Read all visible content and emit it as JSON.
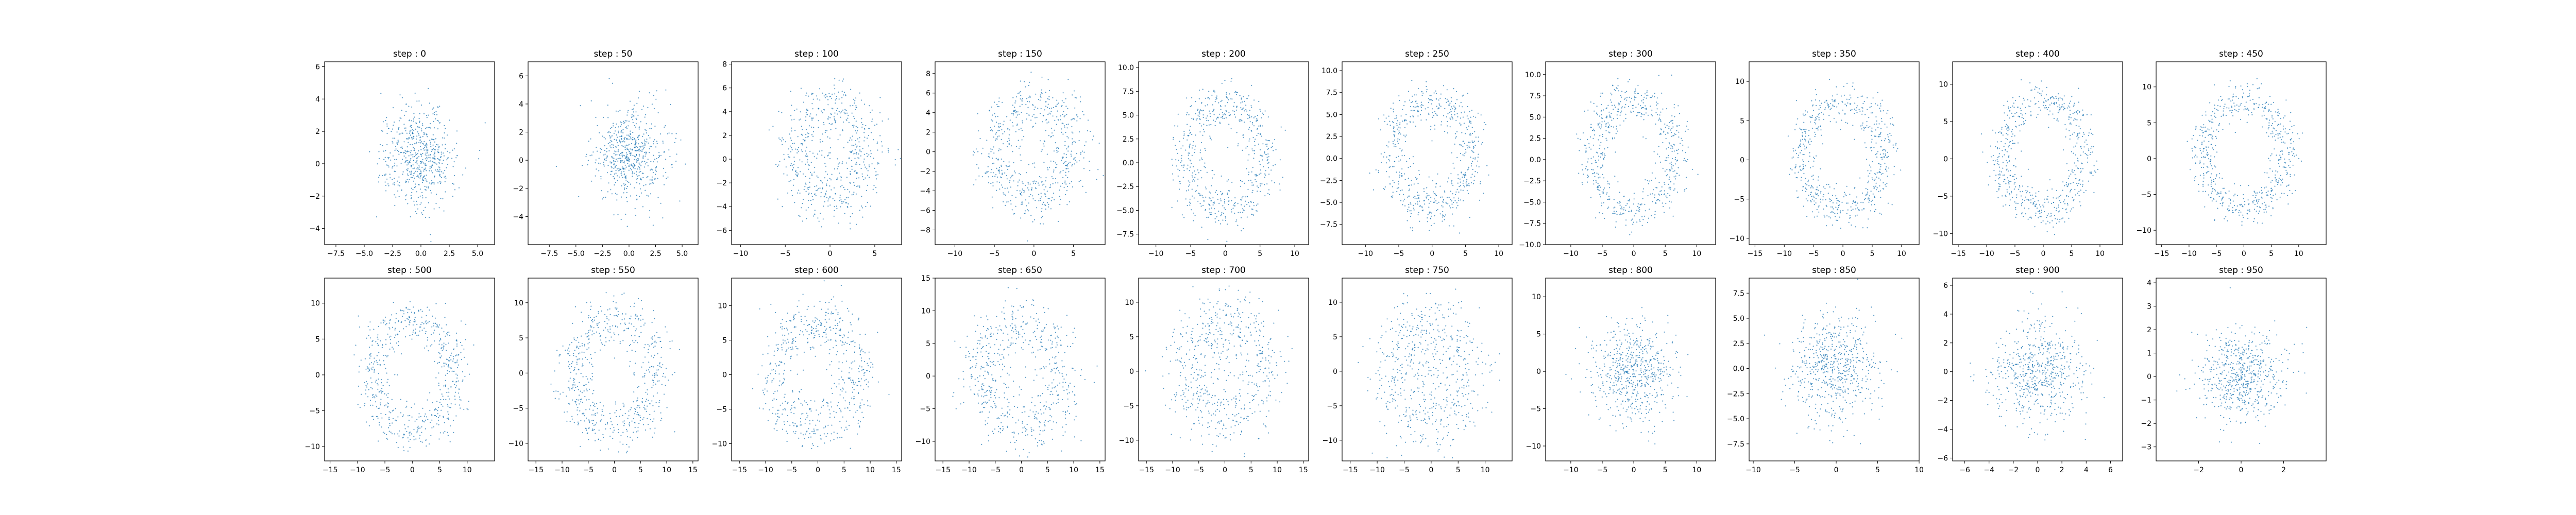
{
  "figure": {
    "background": "#ffffff",
    "point_color": "#1f77b4",
    "axis_color": "#000000"
  },
  "chart_data": [
    {
      "type": "scatter",
      "title": "step : 0",
      "xlim": [
        -8.5,
        6.5
      ],
      "ylim": [
        -5.0,
        6.3
      ],
      "xticks": [
        -7.5,
        -5.0,
        -2.5,
        0.0,
        2.5,
        5.0
      ],
      "yticks": [
        -4,
        -2,
        0,
        2,
        4,
        6
      ],
      "points": [],
      "n_points": 600,
      "gen": {
        "kind": "blob",
        "cx": 0.0,
        "cy": 0.5,
        "r": 3.0,
        "sd": 1.6,
        "seed": 1
      }
    },
    {
      "type": "scatter",
      "title": "step : 50",
      "xlim": [
        -9.5,
        6.5
      ],
      "ylim": [
        -6.0,
        7.0
      ],
      "xticks": [
        -7.5,
        -5.0,
        -2.5,
        0.0,
        2.5,
        5.0
      ],
      "yticks": [
        -4,
        -2,
        0,
        2,
        4,
        6
      ],
      "points": [],
      "n_points": 600,
      "gen": {
        "kind": "blob",
        "cx": 0.0,
        "cy": 0.5,
        "r": 3.3,
        "sd": 1.7,
        "seed": 2
      }
    },
    {
      "type": "scatter",
      "title": "step : 100",
      "xlim": [
        -11,
        8
      ],
      "ylim": [
        -7.2,
        8.2
      ],
      "xticks": [
        -10,
        -5,
        0,
        5
      ],
      "yticks": [
        -6,
        -4,
        -2,
        0,
        2,
        4,
        6,
        8
      ],
      "points": [],
      "n_points": 600,
      "gen": {
        "kind": "ring",
        "cx": 0.0,
        "cy": 0.5,
        "r": 4.0,
        "sd": 1.4,
        "seed": 3
      }
    },
    {
      "type": "scatter",
      "title": "step : 150",
      "xlim": [
        -12.5,
        9
      ],
      "ylim": [
        -9.5,
        9.2
      ],
      "xticks": [
        -10,
        -5,
        0,
        5
      ],
      "yticks": [
        -8,
        -6,
        -4,
        -2,
        0,
        2,
        4,
        6,
        8
      ],
      "points": [],
      "n_points": 600,
      "gen": {
        "kind": "ring",
        "cx": 0.0,
        "cy": 0.0,
        "r": 5.0,
        "sd": 1.4,
        "seed": 4
      }
    },
    {
      "type": "scatter",
      "title": "step : 200",
      "xlim": [
        -12.5,
        12
      ],
      "ylim": [
        -8.6,
        10.6
      ],
      "xticks": [
        -10,
        -5,
        0,
        5,
        10
      ],
      "yticks": [
        -7.5,
        -5.0,
        -2.5,
        0.0,
        2.5,
        5.0,
        7.5,
        10.0
      ],
      "points": [],
      "n_points": 600,
      "gen": {
        "kind": "ring",
        "cx": 0.0,
        "cy": 0.5,
        "r": 5.5,
        "sd": 1.3,
        "seed": 5
      }
    },
    {
      "type": "scatter",
      "title": "step : 250",
      "xlim": [
        -13.5,
        12
      ],
      "ylim": [
        -9.8,
        11.0
      ],
      "xticks": [
        -10,
        -5,
        0,
        5,
        10
      ],
      "yticks": [
        -7.5,
        -5.0,
        -2.5,
        0.0,
        2.5,
        5.0,
        7.5,
        10.0
      ],
      "points": [],
      "n_points": 600,
      "gen": {
        "kind": "ring",
        "cx": 0.0,
        "cy": 0.5,
        "r": 6.0,
        "sd": 1.3,
        "seed": 6
      }
    },
    {
      "type": "scatter",
      "title": "step : 300",
      "xlim": [
        -14,
        13
      ],
      "ylim": [
        -10.0,
        11.5
      ],
      "xticks": [
        -10,
        -5,
        0,
        5,
        10
      ],
      "yticks": [
        -10.0,
        -7.5,
        -5.0,
        -2.5,
        0.0,
        2.5,
        5.0,
        7.5,
        10.0
      ],
      "points": [],
      "n_points": 600,
      "gen": {
        "kind": "ring",
        "cx": 0.0,
        "cy": 0.5,
        "r": 6.5,
        "sd": 1.3,
        "seed": 7
      }
    },
    {
      "type": "scatter",
      "title": "step : 350",
      "xlim": [
        -16,
        13
      ],
      "ylim": [
        -10.8,
        12.5
      ],
      "xticks": [
        -15,
        -10,
        -5,
        0,
        5,
        10
      ],
      "yticks": [
        -10,
        -5,
        0,
        5,
        10
      ],
      "points": [],
      "n_points": 600,
      "gen": {
        "kind": "ring",
        "cx": 0.0,
        "cy": 0.5,
        "r": 7.0,
        "sd": 1.3,
        "seed": 8
      }
    },
    {
      "type": "scatter",
      "title": "step : 400",
      "xlim": [
        -16,
        14
      ],
      "ylim": [
        -11.5,
        13.0
      ],
      "xticks": [
        -15,
        -10,
        -5,
        0,
        5,
        10
      ],
      "yticks": [
        -10,
        -5,
        0,
        5,
        10
      ],
      "points": [],
      "n_points": 600,
      "gen": {
        "kind": "ring",
        "cx": 0.0,
        "cy": 0.5,
        "r": 7.3,
        "sd": 1.3,
        "seed": 9
      }
    },
    {
      "type": "scatter",
      "title": "step : 450",
      "xlim": [
        -16,
        15
      ],
      "ylim": [
        -12,
        13.5
      ],
      "xticks": [
        -15,
        -10,
        -5,
        0,
        5,
        10
      ],
      "yticks": [
        -10,
        -5,
        0,
        5,
        10
      ],
      "points": [],
      "n_points": 600,
      "gen": {
        "kind": "ring",
        "cx": 0.0,
        "cy": 0.5,
        "r": 7.6,
        "sd": 1.3,
        "seed": 10
      }
    },
    {
      "type": "scatter",
      "title": "step : 500",
      "xlim": [
        -16,
        15
      ],
      "ylim": [
        -12,
        13.5
      ],
      "xticks": [
        -15,
        -10,
        -5,
        0,
        5,
        10
      ],
      "yticks": [
        -10,
        -5,
        0,
        5,
        10
      ],
      "points": [],
      "n_points": 600,
      "gen": {
        "kind": "ring",
        "cx": 0.0,
        "cy": 0.0,
        "r": 7.8,
        "sd": 1.6,
        "seed": 11
      }
    },
    {
      "type": "scatter",
      "title": "step : 550",
      "xlim": [
        -16.5,
        16
      ],
      "ylim": [
        -12.5,
        13.5
      ],
      "xticks": [
        -15,
        -10,
        -5,
        0,
        5,
        10,
        15
      ],
      "yticks": [
        -10,
        -5,
        0,
        5,
        10
      ],
      "points": [],
      "n_points": 600,
      "gen": {
        "kind": "ring",
        "cx": 0.0,
        "cy": 0.0,
        "r": 8.0,
        "sd": 1.8,
        "seed": 12
      }
    },
    {
      "type": "scatter",
      "title": "step : 600",
      "xlim": [
        -16.5,
        16
      ],
      "ylim": [
        -12.5,
        14.0
      ],
      "xticks": [
        -15,
        -10,
        -5,
        0,
        5,
        10,
        15
      ],
      "yticks": [
        -10,
        -5,
        0,
        5,
        10
      ],
      "points": [],
      "n_points": 600,
      "gen": {
        "kind": "ring",
        "cx": 0.0,
        "cy": 0.0,
        "r": 8.0,
        "sd": 2.1,
        "seed": 13
      }
    },
    {
      "type": "scatter",
      "title": "step : 650",
      "xlim": [
        -16.5,
        16
      ],
      "ylim": [
        -13,
        15
      ],
      "xticks": [
        -15,
        -10,
        -5,
        0,
        5,
        10,
        15
      ],
      "yticks": [
        -10,
        -5,
        0,
        5,
        10,
        15
      ],
      "points": [],
      "n_points": 600,
      "gen": {
        "kind": "ring",
        "cx": 0.0,
        "cy": 0.0,
        "r": 8.0,
        "sd": 2.4,
        "seed": 14
      }
    },
    {
      "type": "scatter",
      "title": "step : 700",
      "xlim": [
        -16.5,
        16
      ],
      "ylim": [
        -13,
        13.5
      ],
      "xticks": [
        -15,
        -10,
        -5,
        0,
        5,
        10,
        15
      ],
      "yticks": [
        -10,
        -5,
        0,
        5,
        10
      ],
      "points": [],
      "n_points": 600,
      "gen": {
        "kind": "ring",
        "cx": 0.0,
        "cy": 0.0,
        "r": 7.5,
        "sd": 2.6,
        "seed": 15
      }
    },
    {
      "type": "scatter",
      "title": "step : 750",
      "xlim": [
        -16.5,
        15
      ],
      "ylim": [
        -13,
        13.5
      ],
      "xticks": [
        -15,
        -10,
        -5,
        0,
        5,
        10
      ],
      "yticks": [
        -10,
        -5,
        0,
        5,
        10
      ],
      "points": [],
      "n_points": 600,
      "gen": {
        "kind": "ring",
        "cx": 0.0,
        "cy": 0.0,
        "r": 7.0,
        "sd": 2.8,
        "seed": 16
      }
    },
    {
      "type": "scatter",
      "title": "step : 800",
      "xlim": [
        -14,
        13
      ],
      "ylim": [
        -12,
        12.5
      ],
      "xticks": [
        -10,
        -5,
        0,
        5,
        10
      ],
      "yticks": [
        -10,
        -5,
        0,
        5,
        10
      ],
      "points": [],
      "n_points": 600,
      "gen": {
        "kind": "blob",
        "cx": 0.0,
        "cy": 0.0,
        "r": 6.0,
        "sd": 3.2,
        "seed": 17
      }
    },
    {
      "type": "scatter",
      "title": "step : 850",
      "xlim": [
        -10.5,
        10
      ],
      "ylim": [
        -9.2,
        9.0
      ],
      "xticks": [
        -10,
        -5,
        0,
        5,
        10
      ],
      "yticks": [
        -7.5,
        -5.0,
        -2.5,
        0.0,
        2.5,
        5.0,
        7.5
      ],
      "points": [],
      "n_points": 600,
      "gen": {
        "kind": "blob",
        "cx": 0.0,
        "cy": 0.0,
        "r": 4.5,
        "sd": 2.6,
        "seed": 18
      }
    },
    {
      "type": "scatter",
      "title": "step : 900",
      "xlim": [
        -7,
        7
      ],
      "ylim": [
        -6.2,
        6.5
      ],
      "xticks": [
        -6,
        -4,
        -2,
        0,
        2,
        4,
        6
      ],
      "yticks": [
        -6,
        -4,
        -2,
        0,
        2,
        4,
        6
      ],
      "points": [],
      "n_points": 600,
      "gen": {
        "kind": "blob",
        "cx": 0.0,
        "cy": 0.0,
        "r": 3.0,
        "sd": 1.9,
        "seed": 19
      }
    },
    {
      "type": "scatter",
      "title": "step : 950",
      "xlim": [
        -4,
        4
      ],
      "ylim": [
        -3.6,
        4.2
      ],
      "xticks": [
        -2,
        0,
        2
      ],
      "yticks": [
        -3,
        -2,
        -1,
        0,
        1,
        2,
        3,
        4
      ],
      "points": [],
      "n_points": 600,
      "gen": {
        "kind": "blob",
        "cx": 0.0,
        "cy": 0.0,
        "r": 1.6,
        "sd": 1.0,
        "seed": 20
      }
    }
  ]
}
